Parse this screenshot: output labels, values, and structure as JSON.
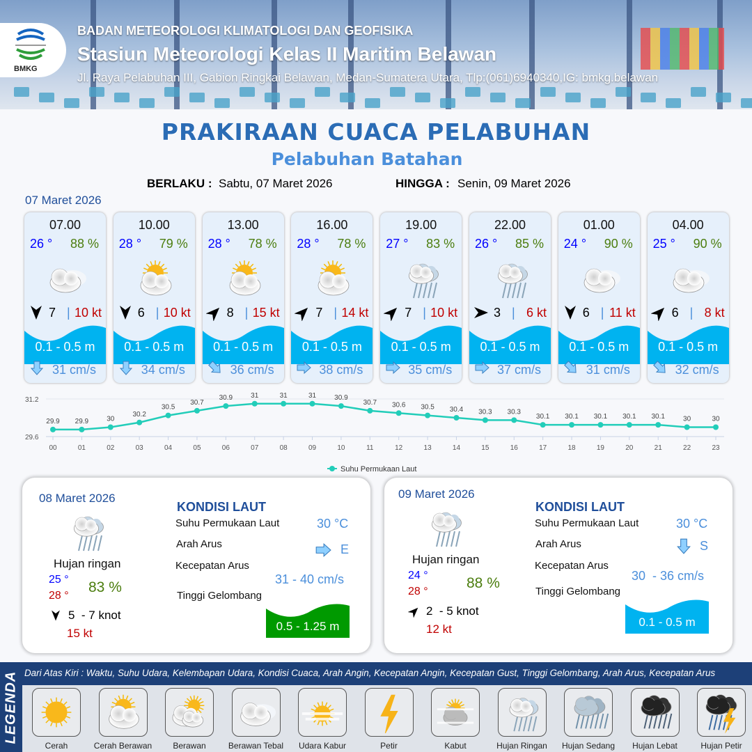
{
  "header": {
    "agency": "BADAN METEOROLOGI KLIMATOLOGI DAN GEOFISIKA",
    "station": "Stasiun Meteorologi Kelas II Maritim Belawan",
    "address": "Jl. Raya Pelabuhan III, Gabion Ringkai Belawan, Medan-Sumatera Utara, Tlp:(061)6940340,IG: bmkg.belawan",
    "logo_text": "BMKG"
  },
  "title": "PRAKIRAAN CUACA PELABUHAN",
  "subtitle": "Pelabuhan Batahan",
  "validity": {
    "from_label": "BERLAKU :",
    "from": "Sabtu, 07 Maret 2026",
    "to_label": "HINGGA :",
    "to": "Senin, 09 Maret 2026"
  },
  "day1_label": "07 Maret 2026",
  "colors": {
    "temp": "#0000ff",
    "humidity": "#4b7d0e",
    "gust": "#c00000",
    "wave_low": "#00b3f0",
    "wave_mid": "#009a00",
    "accent": "#1f4e9a"
  },
  "hourly": [
    {
      "time": "07.00",
      "temp": "26 °",
      "hum": "88 %",
      "icon": "berawan-tebal",
      "wind_dir": "N",
      "wind": "7",
      "gust": "10 kt",
      "wave": "0.1 - 0.5 m",
      "cur_dir": "S",
      "cur": "31 cm/s"
    },
    {
      "time": "10.00",
      "temp": "28 °",
      "hum": "79 %",
      "icon": "cerah-berawan",
      "wind_dir": "N",
      "wind": "6",
      "gust": "10 kt",
      "wave": "0.1 - 0.5 m",
      "cur_dir": "S",
      "cur": "34 cm/s"
    },
    {
      "time": "13.00",
      "temp": "28 °",
      "hum": "78 %",
      "icon": "cerah-berawan",
      "wind_dir": "SW",
      "wind": "8",
      "gust": "15 kt",
      "wave": "0.1 - 0.5 m",
      "cur_dir": "SE",
      "cur": "36 cm/s"
    },
    {
      "time": "16.00",
      "temp": "28 °",
      "hum": "78 %",
      "icon": "cerah-berawan",
      "wind_dir": "SW",
      "wind": "7",
      "gust": "14 kt",
      "wave": "0.1 - 0.5 m",
      "cur_dir": "E",
      "cur": "38 cm/s"
    },
    {
      "time": "19.00",
      "temp": "27 °",
      "hum": "83 %",
      "icon": "hujan-ringan",
      "wind_dir": "SW",
      "wind": "7",
      "gust": "10 kt",
      "wave": "0.1 - 0.5 m",
      "cur_dir": "E",
      "cur": "35 cm/s"
    },
    {
      "time": "22.00",
      "temp": "26 °",
      "hum": "85 %",
      "icon": "hujan-ringan",
      "wind_dir": "W",
      "wind": "3",
      "gust": "6 kt",
      "wave": "0.1 - 0.5 m",
      "cur_dir": "E",
      "cur": "37 cm/s"
    },
    {
      "time": "01.00",
      "temp": "24 °",
      "hum": "90 %",
      "icon": "berawan-tebal",
      "wind_dir": "N",
      "wind": "6",
      "gust": "11 kt",
      "wave": "0.1 - 0.5 m",
      "cur_dir": "SE",
      "cur": "31 cm/s"
    },
    {
      "time": "04.00",
      "temp": "25 °",
      "hum": "90 %",
      "icon": "berawan-tebal",
      "wind_dir": "SW",
      "wind": "6",
      "gust": "8 kt",
      "wave": "0.1 - 0.5 m",
      "cur_dir": "SE",
      "cur": "32 cm/s"
    }
  ],
  "chart_data": {
    "type": "line",
    "categories": [
      "00",
      "01",
      "02",
      "03",
      "04",
      "05",
      "06",
      "07",
      "08",
      "09",
      "10",
      "11",
      "12",
      "13",
      "14",
      "15",
      "16",
      "17",
      "18",
      "19",
      "20",
      "21",
      "22",
      "23"
    ],
    "series": [
      {
        "name": "Suhu Permukaan Laut",
        "values": [
          29.9,
          29.9,
          30.0,
          30.2,
          30.5,
          30.7,
          30.9,
          31.0,
          31.0,
          31.0,
          30.9,
          30.7,
          30.6,
          30.5,
          30.4,
          30.3,
          30.3,
          30.1,
          30.1,
          30.1,
          30.1,
          30.1,
          30.0,
          30.0
        ]
      }
    ],
    "yticks": [
      "31.2",
      "29.6"
    ],
    "ylim": [
      29.6,
      31.2
    ],
    "color": "#22cdb9",
    "legend": "bottom",
    "grid": true
  },
  "days": [
    {
      "date": "08 Maret 2026",
      "icon": "hujan-ringan",
      "cond": "Hujan ringan",
      "tmin": "25 °",
      "tmax": "28 °",
      "hum": "83 %",
      "wind_dir": "N",
      "wind": "5  - 7 knot",
      "gust": "15 kt",
      "kondisi": "KONDISI LAUT",
      "sst_label": "Suhu Permukaan Laut",
      "sst": "30 °C",
      "dir_label": "Arah Arus",
      "cur_dir": "E",
      "dir": "E",
      "spd_label": "Kecepatan Arus",
      "spd": "31 - 40 cm/s",
      "wave_label": "Tinggi Gelombang",
      "wave": "0.5 - 1.25 m",
      "wave_color": "#009a00"
    },
    {
      "date": "09 Maret 2026",
      "icon": "hujan-ringan",
      "cond": "Hujan ringan",
      "tmin": "24 °",
      "tmax": "28 °",
      "hum": "88 %",
      "wind_dir": "SW",
      "wind": "2  - 5 knot",
      "gust": "12 kt",
      "kondisi": "KONDISI LAUT",
      "sst_label": "Suhu Permukaan Laut",
      "sst": "30 °C",
      "dir_label": "Arah Arus",
      "cur_dir": "S",
      "dir": "S",
      "spd_label": "Kecepatan Arus",
      "spd": "30  - 36 cm/s",
      "wave_label": "Tinggi Gelombang",
      "wave": "0.1 - 0.5 m",
      "wave_color": "#00b3f0"
    }
  ],
  "legend": {
    "side": "LEGENDA",
    "caption": "Dari Atas Kiri : Waktu, Suhu Udara, Kelembapan Udara, Kondisi Cuaca, Arah Angin, Kecepatan Angin, Kecepatan Gust, Tinggi Gelombang, Arah Arus, Kecepatan Arus",
    "items": [
      {
        "label": "Cerah",
        "icon": "cerah"
      },
      {
        "label": "Cerah Berawan",
        "icon": "cerah-berawan"
      },
      {
        "label": "Berawan",
        "icon": "berawan"
      },
      {
        "label": "Berawan Tebal",
        "icon": "berawan-tebal"
      },
      {
        "label": "Udara Kabur",
        "icon": "udara-kabur"
      },
      {
        "label": "Petir",
        "icon": "petir"
      },
      {
        "label": "Kabut",
        "icon": "kabut"
      },
      {
        "label": "Hujan Ringan",
        "icon": "hujan-ringan"
      },
      {
        "label": "Hujan Sedang",
        "icon": "hujan-sedang"
      },
      {
        "label": "Hujan Lebat",
        "icon": "hujan-lebat"
      },
      {
        "label": "Hujan Petir",
        "icon": "hujan-petir"
      }
    ]
  }
}
